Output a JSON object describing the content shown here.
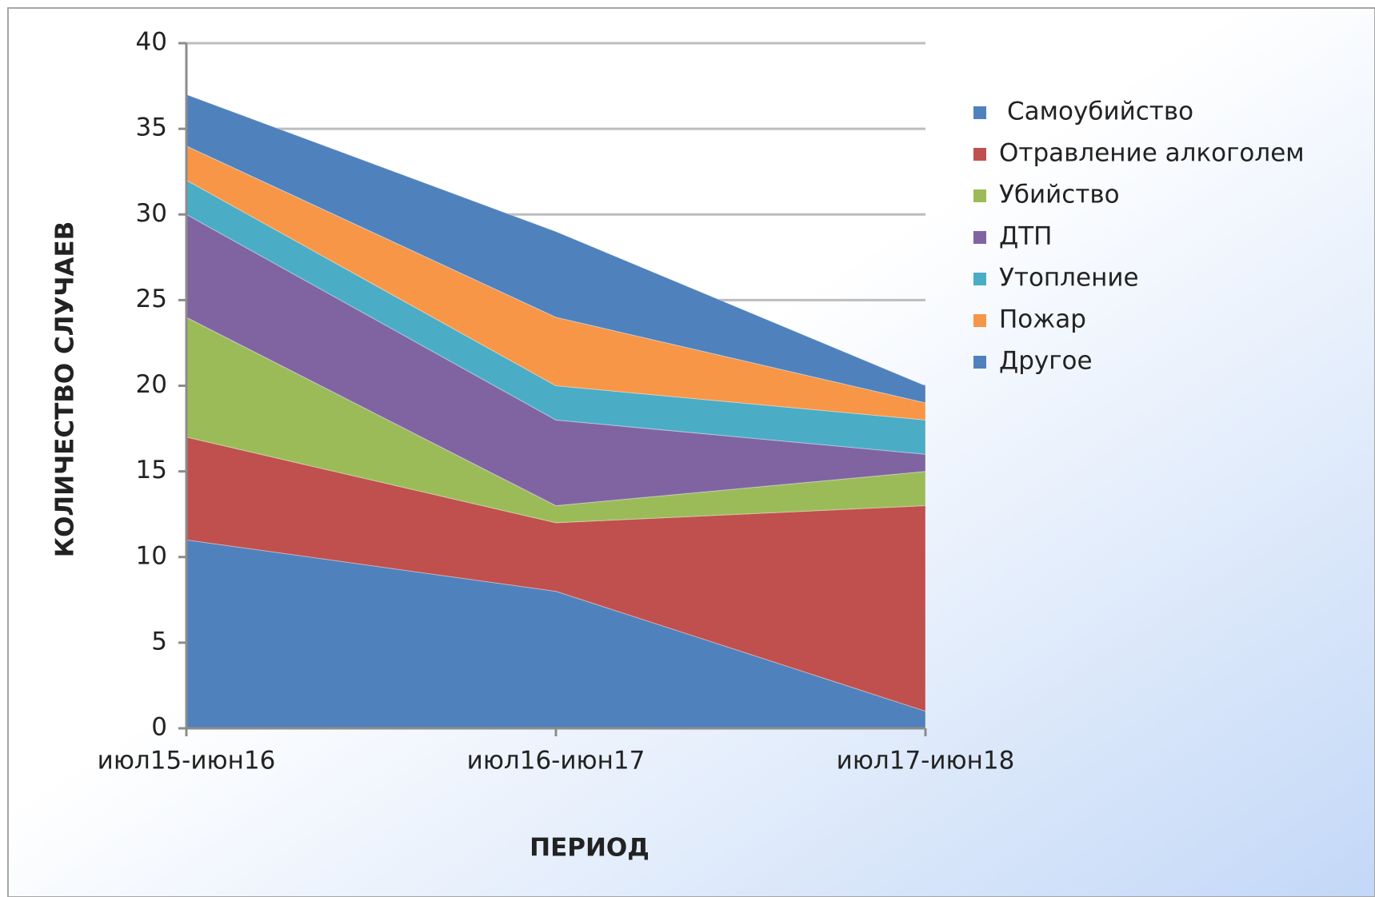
{
  "chart_data": {
    "type": "stacked_area",
    "x_label": "ПЕРИОД",
    "y_label": "КОЛИЧЕСТВО СЛУЧАЕВ",
    "categories": [
      "июл15-июн16",
      "июл16-июн17",
      "июл17-июн18"
    ],
    "series": [
      {
        "name": "Самоубийство",
        "color": "#4f81bd",
        "values": [
          11,
          8,
          1
        ]
      },
      {
        "name": "Отравление алкоголем",
        "color": "#c0504d",
        "values": [
          6,
          4,
          12
        ]
      },
      {
        "name": "Убийство",
        "color": "#9bbb59",
        "values": [
          7,
          1,
          2
        ]
      },
      {
        "name": "ДТП",
        "color": "#8064a2",
        "values": [
          6,
          5,
          1
        ]
      },
      {
        "name": "Утопление",
        "color": "#4bacc6",
        "values": [
          2,
          2,
          2
        ]
      },
      {
        "name": "Пожар",
        "color": "#f79646",
        "values": [
          2,
          4,
          1
        ]
      },
      {
        "name": "Другое",
        "color": "#4f81bd",
        "values": [
          3,
          5,
          1
        ]
      }
    ],
    "ylim": [
      0,
      40
    ],
    "yticks": [
      0,
      5,
      10,
      15,
      20,
      25,
      30,
      35,
      40
    ],
    "grid": true,
    "legend": "right"
  }
}
